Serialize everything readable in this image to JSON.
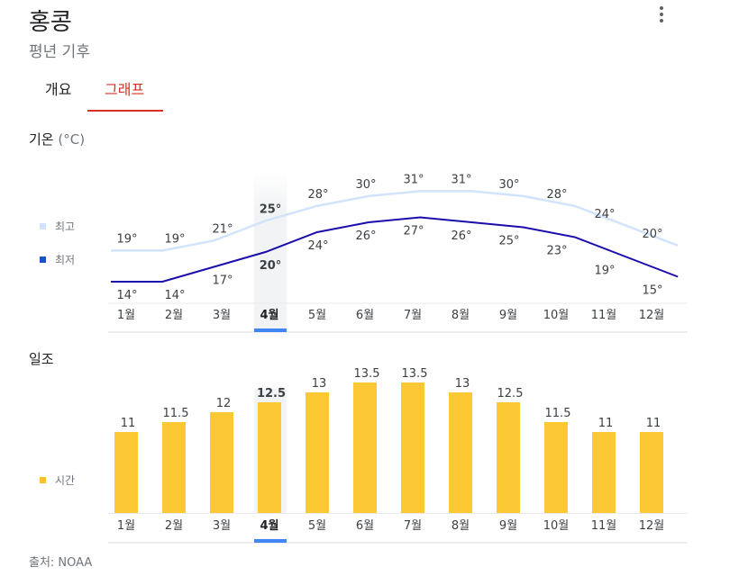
{
  "header": {
    "title": "홍콩",
    "subtitle": "평년 기후",
    "more_icon": "more-vert-icon"
  },
  "tabs": [
    {
      "label": "개요",
      "selected": false
    },
    {
      "label": "그래프",
      "selected": true
    }
  ],
  "temperature": {
    "title": "기온",
    "unit": "(°C)",
    "legend": [
      {
        "label": "최고",
        "color": "#d2e3fc"
      },
      {
        "label": "최저",
        "color": "#1a53c8"
      }
    ],
    "colors": {
      "high": "#d2e3fc",
      "low": "#1a0dab",
      "highlight": "#f1f3f4",
      "selected_marker": "#4285f4"
    }
  },
  "sunshine": {
    "title": "일조",
    "legend": [
      {
        "label": "시간",
        "color": "#fbc02d"
      }
    ],
    "colors": {
      "bar": "#fcc934"
    }
  },
  "selected_month_index": 3,
  "chart_data": [
    {
      "type": "line",
      "title": "기온 (°C)",
      "categories": [
        "1월",
        "2월",
        "3월",
        "4월",
        "5월",
        "6월",
        "7월",
        "8월",
        "9월",
        "10월",
        "11월",
        "12월"
      ],
      "series": [
        {
          "name": "최고",
          "values": [
            19,
            19,
            21,
            25,
            28,
            30,
            31,
            31,
            30,
            28,
            24,
            20
          ],
          "labels": [
            "19°",
            "19°",
            "21°",
            "25°",
            "28°",
            "30°",
            "31°",
            "31°",
            "30°",
            "28°",
            "24°",
            "20°"
          ]
        },
        {
          "name": "최저",
          "values": [
            14,
            14,
            17,
            20,
            24,
            26,
            27,
            26,
            25,
            23,
            19,
            15
          ],
          "labels": [
            "14°",
            "14°",
            "17°",
            "20°",
            "24°",
            "26°",
            "27°",
            "26°",
            "25°",
            "23°",
            "19°",
            "15°"
          ]
        }
      ]
    },
    {
      "type": "bar",
      "title": "일조",
      "categories": [
        "1월",
        "2월",
        "3월",
        "4월",
        "5월",
        "6월",
        "7월",
        "8월",
        "9월",
        "10월",
        "11월",
        "12월"
      ],
      "series": [
        {
          "name": "시간",
          "values": [
            11,
            11.5,
            12,
            12.5,
            13,
            13.5,
            13.5,
            13,
            12.5,
            11.5,
            11,
            11
          ],
          "labels": [
            "11",
            "11.5",
            "12",
            "12.5",
            "13",
            "13.5",
            "13.5",
            "13",
            "12.5",
            "11.5",
            "11",
            "11"
          ]
        }
      ]
    }
  ],
  "footer": {
    "source": "출처: NOAA"
  }
}
